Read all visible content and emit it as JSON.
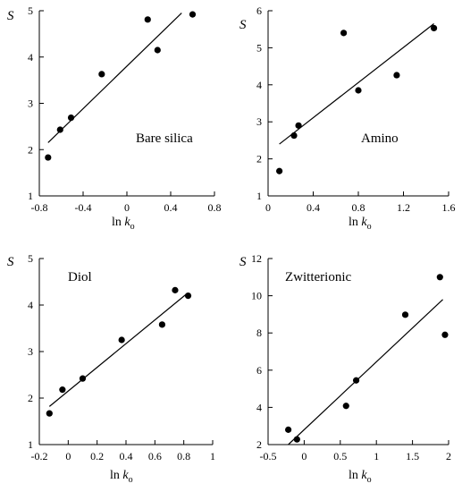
{
  "chart_data": [
    {
      "type": "scatter",
      "ylabel": "S",
      "xlabel_main": "ln ",
      "xlabel_var": "k",
      "xlabel_sub": "o",
      "annotation": "Bare silica",
      "xlim": [
        -0.8,
        0.8
      ],
      "ylim": [
        1,
        5
      ],
      "xticks": [
        "-0.8",
        "-0.4",
        "0",
        "0.4",
        "0.8"
      ],
      "xtick_values": [
        -0.8,
        -0.4,
        0,
        0.4,
        0.8
      ],
      "yticks": [
        "1",
        "2",
        "3",
        "4",
        "5"
      ],
      "ytick_values": [
        1,
        2,
        3,
        4,
        5
      ],
      "points": [
        {
          "x": -0.72,
          "y": 1.83
        },
        {
          "x": -0.61,
          "y": 2.43
        },
        {
          "x": -0.51,
          "y": 2.69
        },
        {
          "x": -0.23,
          "y": 3.63
        },
        {
          "x": 0.19,
          "y": 4.81
        },
        {
          "x": 0.28,
          "y": 4.15
        },
        {
          "x": 0.6,
          "y": 4.92
        }
      ],
      "fit_line": {
        "x": [
          -0.72,
          0.5
        ],
        "y": [
          2.15,
          4.95
        ]
      }
    },
    {
      "type": "scatter",
      "ylabel": "S",
      "xlabel_main": "ln ",
      "xlabel_var": "k",
      "xlabel_sub": "o",
      "annotation": "Amino",
      "xlim": [
        0,
        1.6
      ],
      "ylim": [
        1,
        6
      ],
      "xticks": [
        "0",
        "0.4",
        "0.8",
        "1.2",
        "1.6"
      ],
      "xtick_values": [
        0,
        0.4,
        0.8,
        1.2,
        1.6
      ],
      "yticks": [
        "1",
        "2",
        "3",
        "4",
        "5",
        "6"
      ],
      "ytick_values": [
        1,
        2,
        3,
        4,
        5,
        6
      ],
      "points": [
        {
          "x": 0.1,
          "y": 1.67
        },
        {
          "x": 0.23,
          "y": 2.63
        },
        {
          "x": 0.27,
          "y": 2.9
        },
        {
          "x": 0.67,
          "y": 5.4
        },
        {
          "x": 0.8,
          "y": 3.85
        },
        {
          "x": 1.14,
          "y": 4.26
        },
        {
          "x": 1.47,
          "y": 5.53
        }
      ],
      "fit_line": {
        "x": [
          0.1,
          1.47
        ],
        "y": [
          2.4,
          5.65
        ]
      }
    },
    {
      "type": "scatter",
      "ylabel": "S",
      "xlabel_main": "ln ",
      "xlabel_var": "k",
      "xlabel_sub": "o",
      "annotation": "Diol",
      "xlim": [
        -0.2,
        1
      ],
      "ylim": [
        1,
        5
      ],
      "xticks": [
        "-0.2",
        "0",
        "0.2",
        "0.4",
        "0.6",
        "0.8",
        "1"
      ],
      "xtick_values": [
        -0.2,
        0,
        0.2,
        0.4,
        0.6,
        0.8,
        1
      ],
      "yticks": [
        "1",
        "2",
        "3",
        "4",
        "5"
      ],
      "ytick_values": [
        1,
        2,
        3,
        4,
        5
      ],
      "points": [
        {
          "x": -0.13,
          "y": 1.67
        },
        {
          "x": -0.04,
          "y": 2.18
        },
        {
          "x": 0.1,
          "y": 2.42
        },
        {
          "x": 0.37,
          "y": 3.25
        },
        {
          "x": 0.65,
          "y": 3.58
        },
        {
          "x": 0.74,
          "y": 4.32
        },
        {
          "x": 0.83,
          "y": 4.2
        }
      ],
      "fit_line": {
        "x": [
          -0.13,
          0.82
        ],
        "y": [
          1.82,
          4.24
        ]
      }
    },
    {
      "type": "scatter",
      "ylabel": "S",
      "xlabel_main": "ln ",
      "xlabel_var": "k",
      "xlabel_sub": "o",
      "annotation": "Zwitterionic",
      "xlim": [
        -0.5,
        2
      ],
      "ylim": [
        2,
        12
      ],
      "xticks": [
        "-0.5",
        "0",
        "0.5",
        "1",
        "1.5",
        "2"
      ],
      "xtick_values": [
        -0.5,
        0,
        0.5,
        1,
        1.5,
        2
      ],
      "yticks": [
        "2",
        "4",
        "6",
        "8",
        "10",
        "12"
      ],
      "ytick_values": [
        2,
        4,
        6,
        8,
        10,
        12
      ],
      "points": [
        {
          "x": -0.22,
          "y": 2.8
        },
        {
          "x": -0.1,
          "y": 2.28
        },
        {
          "x": 0.58,
          "y": 4.08
        },
        {
          "x": 0.72,
          "y": 5.45
        },
        {
          "x": 1.4,
          "y": 8.98
        },
        {
          "x": 1.88,
          "y": 11.0
        },
        {
          "x": 1.95,
          "y": 7.9
        }
      ],
      "fit_line": {
        "x": [
          -0.22,
          1.92
        ],
        "y": [
          2.0,
          9.8
        ]
      }
    }
  ]
}
